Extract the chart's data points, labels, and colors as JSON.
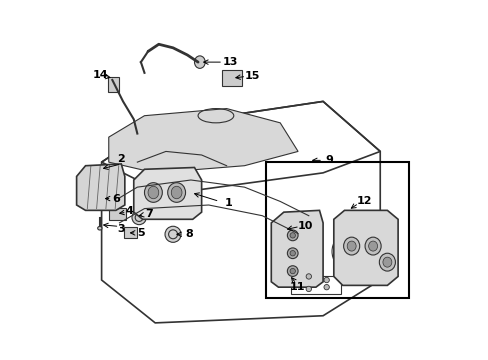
{
  "bg_color": "#ffffff",
  "line_color": "#333333",
  "text_color": "#000000",
  "label_fontsize": 8
}
